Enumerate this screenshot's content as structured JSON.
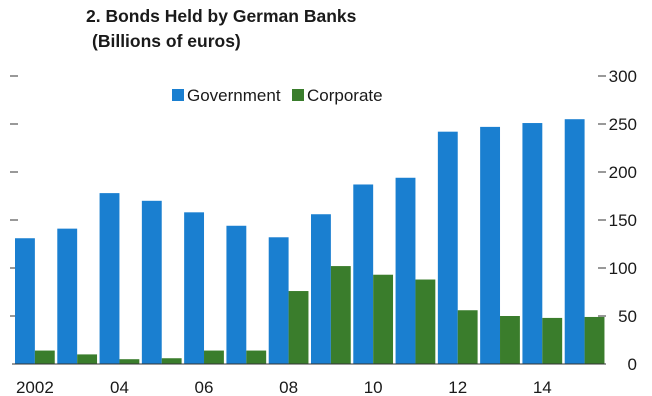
{
  "chart_data": {
    "type": "bar",
    "title": "2. Bonds Held by German Banks",
    "subtitle": "(Billions of euros)",
    "xlabel": "",
    "ylabel": "",
    "categories": [
      "2002",
      "2003",
      "2004",
      "2005",
      "2006",
      "2007",
      "2008",
      "2009",
      "2010",
      "2011",
      "2012",
      "2013",
      "2014",
      "2015"
    ],
    "x_tick_labels": [
      "2002",
      "",
      "04",
      "",
      "06",
      "",
      "08",
      "",
      "10",
      "",
      "12",
      "",
      "14",
      ""
    ],
    "series": [
      {
        "name": "Government",
        "color": "#1a7fd0",
        "values": [
          131,
          141,
          178,
          170,
          158,
          144,
          132,
          156,
          187,
          194,
          242,
          247,
          251,
          255
        ]
      },
      {
        "name": "Corporate",
        "color": "#3a7d2c",
        "values": [
          14,
          10,
          5,
          6,
          14,
          14,
          76,
          102,
          93,
          88,
          56,
          50,
          48,
          49
        ]
      }
    ],
    "ylim": [
      0,
      300
    ],
    "y_ticks": [
      0,
      50,
      100,
      150,
      200,
      250,
      300
    ],
    "y_axis_side": "right",
    "grid": false,
    "legend_position": "top-center"
  }
}
